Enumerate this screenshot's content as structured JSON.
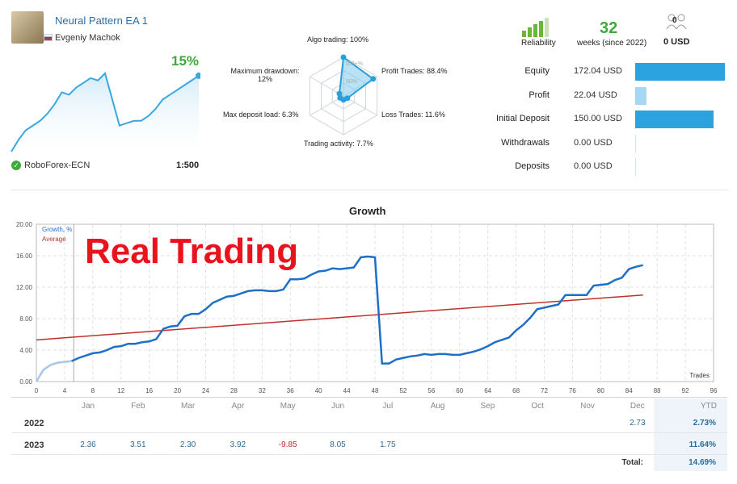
{
  "header": {
    "name": "Neural Pattern EA 1",
    "author": "Evgeniy Machok",
    "growth_pct": "15%",
    "broker": "RoboForex-ECN",
    "leverage": "1:500"
  },
  "mini_growth_values": [
    0.0,
    5,
    9,
    11,
    13,
    16,
    20,
    25,
    24,
    27,
    29,
    31,
    30,
    33,
    22,
    11,
    12,
    13,
    13,
    15,
    18,
    22,
    24,
    26,
    28,
    30,
    32
  ],
  "radar": {
    "labels": {
      "algo": "Algo trading: 100%",
      "profit_trades": "Profit Trades: 88.4%",
      "loss_trades": "Loss Trades: 11.6%",
      "activity": "Trading activity: 7.7%",
      "deposit_load": "Max deposit load: 6.3%",
      "drawdown": "Maximum drawdown:",
      "drawdown_val": "12%",
      "ring100": "100+%",
      "ring50": "50%"
    },
    "values": [
      100,
      88.4,
      11.6,
      7.7,
      6.3,
      12
    ]
  },
  "stats": {
    "reliability_label": "Reliability",
    "weeks": "32",
    "weeks_label": "weeks (since 2022)",
    "subscribers": "0",
    "subscribers_usd": "0 USD"
  },
  "summary": {
    "rows": [
      {
        "label": "Equity",
        "value": "172.04 USD",
        "fill": 1.0,
        "color": "#2aa3e0"
      },
      {
        "label": "Profit",
        "value": "22.04 USD",
        "fill": 0.128,
        "color": "#a6d8f2"
      },
      {
        "label": "Initial Deposit",
        "value": "150.00 USD",
        "fill": 0.872,
        "color": "#2aa3e0"
      },
      {
        "label": "Withdrawals",
        "value": "0.00 USD",
        "fill": 0.0,
        "color": "#2aa3e0"
      },
      {
        "label": "Deposits",
        "value": "0.00 USD",
        "fill": 0.0,
        "color": "#2aa3e0"
      }
    ]
  },
  "chart_data": {
    "type": "line",
    "title": "Growth",
    "watermark": "Real Trading",
    "xlabel": "Trades",
    "ylabel": "",
    "xlim": [
      0,
      96
    ],
    "ylim": [
      0,
      20
    ],
    "x_ticks": [
      "0",
      "4",
      "8",
      "12",
      "16",
      "20",
      "24",
      "28",
      "32",
      "36",
      "40",
      "44",
      "48",
      "52",
      "56",
      "60",
      "64",
      "68",
      "72",
      "76",
      "80",
      "84",
      "88",
      "92",
      "96"
    ],
    "y_ticks": [
      "0.00",
      "4.00",
      "8.00",
      "12.00",
      "16.00",
      "20.00"
    ],
    "series": [
      {
        "name": "Growth, %",
        "color": "#1f6fc7",
        "points": [
          [
            0,
            0
          ],
          [
            1,
            1.5
          ],
          [
            2,
            2.1
          ],
          [
            3,
            2.4
          ],
          [
            4,
            2.5
          ],
          [
            5,
            2.6
          ],
          [
            6,
            3.0
          ],
          [
            7,
            3.3
          ],
          [
            8,
            3.6
          ],
          [
            9,
            3.7
          ],
          [
            10,
            4.0
          ],
          [
            11,
            4.4
          ],
          [
            12,
            4.5
          ],
          [
            13,
            4.8
          ],
          [
            14,
            4.8
          ],
          [
            15,
            5.0
          ],
          [
            16,
            5.1
          ],
          [
            17,
            5.4
          ],
          [
            18,
            6.7
          ],
          [
            19,
            7.0
          ],
          [
            20,
            7.1
          ],
          [
            21,
            8.3
          ],
          [
            22,
            8.6
          ],
          [
            23,
            8.6
          ],
          [
            24,
            9.2
          ],
          [
            25,
            10.0
          ],
          [
            26,
            10.4
          ],
          [
            27,
            10.8
          ],
          [
            28,
            10.9
          ],
          [
            29,
            11.2
          ],
          [
            30,
            11.5
          ],
          [
            31,
            11.6
          ],
          [
            32,
            11.6
          ],
          [
            33,
            11.5
          ],
          [
            34,
            11.5
          ],
          [
            35,
            11.7
          ],
          [
            36,
            13.0
          ],
          [
            37,
            13.0
          ],
          [
            38,
            13.1
          ],
          [
            39,
            13.6
          ],
          [
            40,
            14.0
          ],
          [
            41,
            14.1
          ],
          [
            42,
            14.4
          ],
          [
            43,
            14.3
          ],
          [
            44,
            14.4
          ],
          [
            45,
            14.5
          ],
          [
            46,
            15.8
          ],
          [
            47,
            15.9
          ],
          [
            48,
            15.8
          ],
          [
            49,
            2.3
          ],
          [
            50,
            2.3
          ],
          [
            51,
            2.8
          ],
          [
            52,
            3.0
          ],
          [
            53,
            3.2
          ],
          [
            54,
            3.3
          ],
          [
            55,
            3.5
          ],
          [
            56,
            3.4
          ],
          [
            57,
            3.5
          ],
          [
            58,
            3.5
          ],
          [
            59,
            3.4
          ],
          [
            60,
            3.4
          ],
          [
            61,
            3.6
          ],
          [
            62,
            3.8
          ],
          [
            63,
            4.1
          ],
          [
            64,
            4.5
          ],
          [
            65,
            5.0
          ],
          [
            66,
            5.3
          ],
          [
            67,
            5.6
          ],
          [
            68,
            6.5
          ],
          [
            69,
            7.2
          ],
          [
            70,
            8.1
          ],
          [
            71,
            9.2
          ],
          [
            72,
            9.4
          ],
          [
            73,
            9.6
          ],
          [
            74,
            9.8
          ],
          [
            75,
            11.0
          ],
          [
            76,
            11.0
          ],
          [
            77,
            11.0
          ],
          [
            78,
            11.0
          ],
          [
            79,
            12.2
          ],
          [
            80,
            12.3
          ],
          [
            81,
            12.4
          ],
          [
            82,
            12.9
          ],
          [
            83,
            13.2
          ],
          [
            84,
            14.3
          ],
          [
            85,
            14.6
          ],
          [
            86,
            14.8
          ]
        ]
      },
      {
        "name": "Average",
        "color": "#c0302b",
        "points": [
          [
            0,
            5.3
          ],
          [
            86,
            11.0
          ]
        ]
      }
    ]
  },
  "monthly": {
    "months": [
      "Jan",
      "Feb",
      "Mar",
      "Apr",
      "May",
      "Jun",
      "Jul",
      "Aug",
      "Sep",
      "Oct",
      "Nov",
      "Dec"
    ],
    "ytd_label": "YTD",
    "rows": [
      {
        "year": "2022",
        "values": [
          "",
          "",
          "",
          "",
          "",
          "",
          "",
          "",
          "",
          "",
          "",
          "2.73"
        ],
        "ytd": "2.73%"
      },
      {
        "year": "2023",
        "values": [
          "2.36",
          "3.51",
          "2.30",
          "3.92",
          "-9.85",
          "8.05",
          "1.75",
          "",
          "",
          "",
          "",
          ""
        ],
        "ytd": "11.64%"
      }
    ],
    "total_label": "Total:",
    "total_value": "14.69%"
  }
}
